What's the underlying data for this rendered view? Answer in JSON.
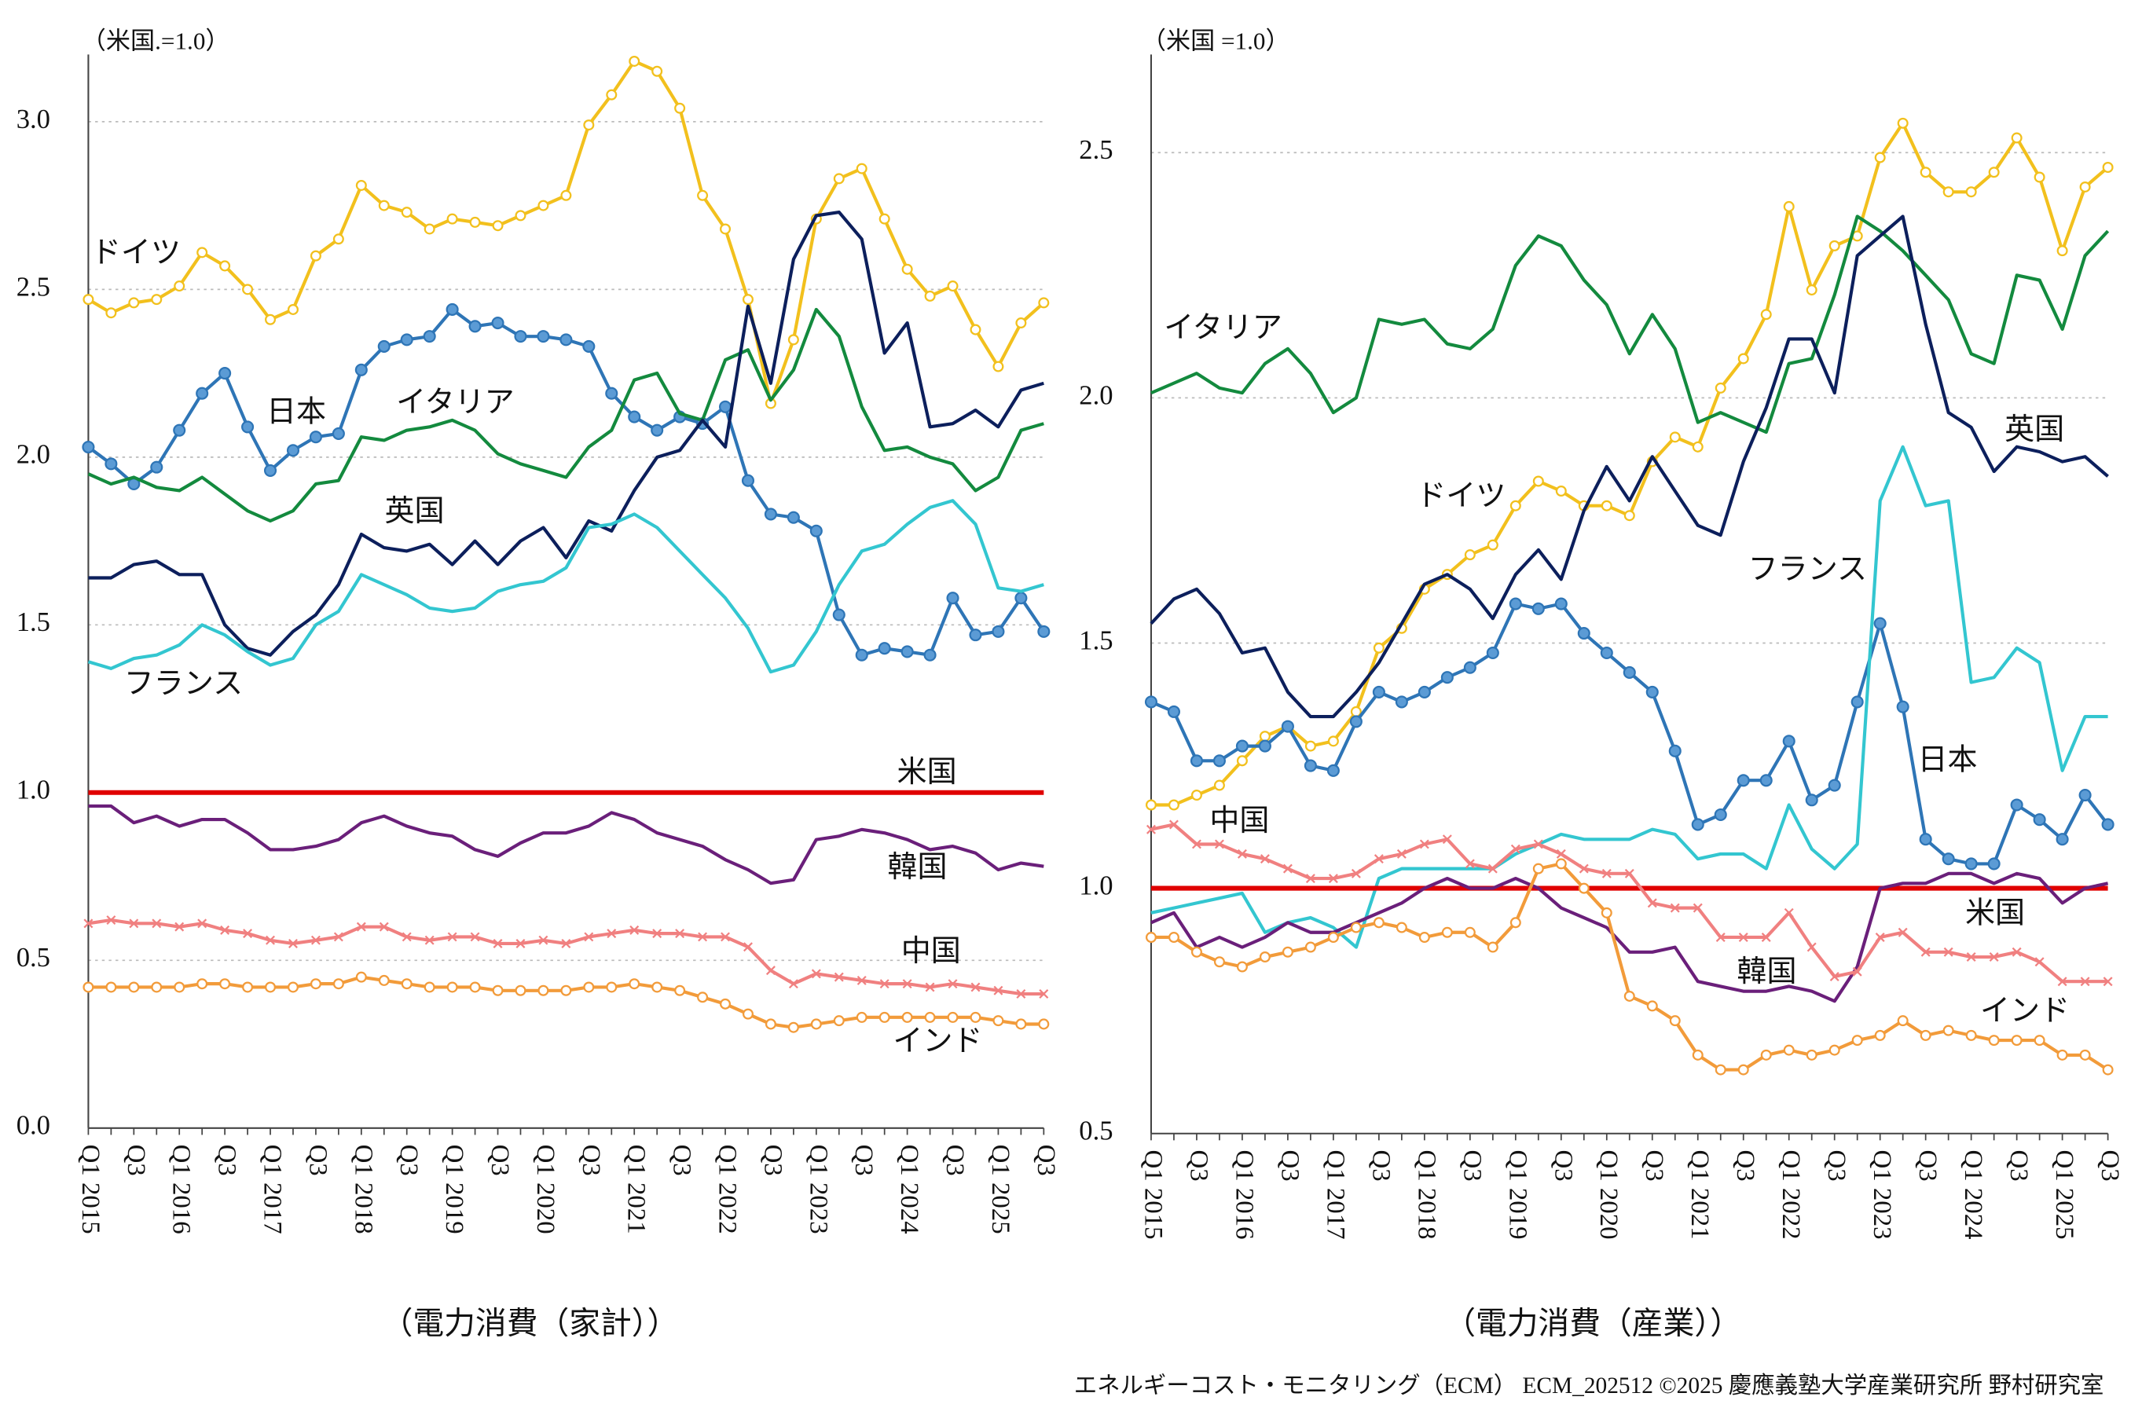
{
  "chart_data": [
    {
      "type": "line",
      "y_label": "（米国.=1.0）",
      "x_label": "（電力消費（家計））",
      "categories": [
        "Q1 2015",
        null,
        "Q3",
        null,
        "Q1 2016",
        null,
        "Q3",
        null,
        "Q1 2017",
        null,
        "Q3",
        null,
        "Q1 2018",
        null,
        "Q3",
        null,
        "Q1 2019",
        null,
        "Q3",
        null,
        "Q1 2020",
        null,
        "Q3",
        null,
        "Q1 2021",
        null,
        "Q3",
        null,
        "Q1 2022",
        null,
        "Q3",
        null,
        "Q1 2023",
        null,
        "Q3",
        null,
        "Q1 2024",
        null,
        "Q3",
        null,
        "Q1 2025",
        null,
        "Q3"
      ],
      "ylim": [
        0,
        3.2
      ],
      "yticks": [
        {
          "value": 0,
          "label": "0.0"
        },
        0.5,
        {
          "value": 1,
          "label": "1.0"
        },
        1.5,
        {
          "value": 2,
          "label": "2.0"
        },
        2.5,
        {
          "value": 3,
          "label": "3.0"
        }
      ],
      "grid": true,
      "series": [
        {
          "name": "ドイツ",
          "color": "#f2c01d",
          "marker": "open-circle",
          "values": [
            2.47,
            2.43,
            2.46,
            2.47,
            2.51,
            2.61,
            2.57,
            2.5,
            2.41,
            2.44,
            2.6,
            2.65,
            2.81,
            2.75,
            2.73,
            2.68,
            2.71,
            2.7,
            2.69,
            2.72,
            2.75,
            2.78,
            2.99,
            3.08,
            3.18,
            3.15,
            3.04,
            2.78,
            2.68,
            2.47,
            2.16,
            2.35,
            2.71,
            2.83,
            2.86,
            2.71,
            2.56,
            2.48,
            2.51,
            2.38,
            2.27,
            2.4,
            2.46
          ]
        },
        {
          "name": "日本",
          "color": "#2e75b6",
          "marker": "filled-circle",
          "values": [
            2.03,
            1.98,
            1.92,
            1.97,
            2.08,
            2.19,
            2.25,
            2.09,
            1.96,
            2.02,
            2.06,
            2.07,
            2.26,
            2.33,
            2.35,
            2.36,
            2.44,
            2.39,
            2.4,
            2.36,
            2.36,
            2.35,
            2.33,
            2.19,
            2.12,
            2.08,
            2.12,
            2.1,
            2.15,
            1.93,
            1.83,
            1.82,
            1.78,
            1.53,
            1.41,
            1.43,
            1.42,
            1.41,
            1.58,
            1.47,
            1.48,
            1.58,
            1.48
          ]
        },
        {
          "name": "イタリア",
          "color": "#138a3e",
          "marker": null,
          "values": [
            1.95,
            1.92,
            1.94,
            1.91,
            1.9,
            1.94,
            1.89,
            1.84,
            1.81,
            1.84,
            1.92,
            1.93,
            2.06,
            2.05,
            2.08,
            2.09,
            2.11,
            2.08,
            2.01,
            1.98,
            1.96,
            1.94,
            2.03,
            2.08,
            2.23,
            2.25,
            2.13,
            2.11,
            2.29,
            2.32,
            2.17,
            2.26,
            2.44,
            2.36,
            2.15,
            2.02,
            2.03,
            2.0,
            1.98,
            1.9,
            1.94,
            2.08,
            2.1
          ]
        },
        {
          "name": "英国",
          "color": "#0c1f5c",
          "marker": null,
          "values": [
            1.64,
            1.64,
            1.68,
            1.69,
            1.65,
            1.65,
            1.5,
            1.43,
            1.41,
            1.48,
            1.53,
            1.62,
            1.77,
            1.73,
            1.72,
            1.74,
            1.68,
            1.75,
            1.68,
            1.75,
            1.79,
            1.7,
            1.81,
            1.78,
            1.9,
            2.0,
            2.02,
            2.11,
            2.03,
            2.45,
            2.22,
            2.59,
            2.72,
            2.73,
            2.65,
            2.31,
            2.4,
            2.09,
            2.1,
            2.14,
            2.09,
            2.2,
            2.22
          ]
        },
        {
          "name": "フランス",
          "color": "#33c6d0",
          "marker": null,
          "values": [
            1.39,
            1.37,
            1.4,
            1.41,
            1.44,
            1.5,
            1.47,
            1.42,
            1.38,
            1.4,
            1.5,
            1.54,
            1.65,
            1.62,
            1.59,
            1.55,
            1.54,
            1.55,
            1.6,
            1.62,
            1.63,
            1.67,
            1.79,
            1.8,
            1.83,
            1.79,
            1.72,
            1.65,
            1.58,
            1.49,
            1.36,
            1.38,
            1.48,
            1.62,
            1.72,
            1.74,
            1.8,
            1.85,
            1.87,
            1.8,
            1.61,
            1.6,
            1.62
          ]
        },
        {
          "name": "米国",
          "color": "#e00000",
          "marker": null,
          "values": [
            1,
            1,
            1,
            1,
            1,
            1,
            1,
            1,
            1,
            1,
            1,
            1,
            1,
            1,
            1,
            1,
            1,
            1,
            1,
            1,
            1,
            1,
            1,
            1,
            1,
            1,
            1,
            1,
            1,
            1,
            1,
            1,
            1,
            1,
            1,
            1,
            1,
            1,
            1,
            1,
            1,
            1,
            1
          ]
        },
        {
          "name": "韓国",
          "color": "#6a1f7a",
          "marker": null,
          "values": [
            0.96,
            0.96,
            0.91,
            0.93,
            0.9,
            0.92,
            0.92,
            0.88,
            0.83,
            0.83,
            0.84,
            0.86,
            0.91,
            0.93,
            0.9,
            0.88,
            0.87,
            0.83,
            0.81,
            0.85,
            0.88,
            0.88,
            0.9,
            0.94,
            0.92,
            0.88,
            0.86,
            0.84,
            0.8,
            0.77,
            0.73,
            0.74,
            0.86,
            0.87,
            0.89,
            0.88,
            0.86,
            0.83,
            0.84,
            0.82,
            0.77,
            0.79,
            0.78
          ]
        },
        {
          "name": "中国",
          "color": "#f08080",
          "marker": "x",
          "values": [
            0.61,
            0.62,
            0.61,
            0.61,
            0.6,
            0.61,
            0.59,
            0.58,
            0.56,
            0.55,
            0.56,
            0.57,
            0.6,
            0.6,
            0.57,
            0.56,
            0.57,
            0.57,
            0.55,
            0.55,
            0.56,
            0.55,
            0.57,
            0.58,
            0.59,
            0.58,
            0.58,
            0.57,
            0.57,
            0.54,
            0.47,
            0.43,
            0.46,
            0.45,
            0.44,
            0.43,
            0.43,
            0.42,
            0.43,
            0.42,
            0.41,
            0.4,
            0.4
          ]
        },
        {
          "name": "インド",
          "color": "#f29b3a",
          "marker": "open-circle",
          "values": [
            0.42,
            0.42,
            0.42,
            0.42,
            0.42,
            0.43,
            0.43,
            0.42,
            0.42,
            0.42,
            0.43,
            0.43,
            0.45,
            0.44,
            0.43,
            0.42,
            0.42,
            0.42,
            0.41,
            0.41,
            0.41,
            0.41,
            0.42,
            0.42,
            0.43,
            0.42,
            0.41,
            0.39,
            0.37,
            0.34,
            0.31,
            0.3,
            0.31,
            0.32,
            0.33,
            0.33,
            0.33,
            0.33,
            0.33,
            0.33,
            0.32,
            0.31,
            0.31
          ]
        }
      ]
    },
    {
      "type": "line",
      "y_label": "（米国 =1.0）",
      "x_label": "（電力消費（産業））",
      "categories": [
        "Q1 2015",
        null,
        "Q3",
        null,
        "Q1 2016",
        null,
        "Q3",
        null,
        "Q1 2017",
        null,
        "Q3",
        null,
        "Q1 2018",
        null,
        "Q3",
        null,
        "Q1 2019",
        null,
        "Q3",
        null,
        "Q1 2020",
        null,
        "Q3",
        null,
        "Q1 2021",
        null,
        "Q3",
        null,
        "Q1 2022",
        null,
        "Q3",
        null,
        "Q1 2023",
        null,
        "Q3",
        null,
        "Q1 2024",
        null,
        "Q3",
        null,
        "Q1 2025",
        null,
        "Q3"
      ],
      "ylim": [
        0.5,
        2.7
      ],
      "yticks": [
        0.5,
        {
          "value": 1,
          "label": "1.0"
        },
        1.5,
        {
          "value": 2,
          "label": "2.0"
        },
        2.5
      ],
      "grid": true,
      "series": [
        {
          "name": "ドイツ",
          "color": "#f2c01d",
          "marker": "open-circle",
          "values": [
            1.17,
            1.17,
            1.19,
            1.21,
            1.26,
            1.31,
            1.33,
            1.29,
            1.3,
            1.36,
            1.49,
            1.53,
            1.61,
            1.64,
            1.68,
            1.7,
            1.78,
            1.83,
            1.81,
            1.78,
            1.78,
            1.76,
            1.87,
            1.92,
            1.9,
            2.02,
            2.08,
            2.17,
            2.39,
            2.22,
            2.31,
            2.33,
            2.49,
            2.56,
            2.46,
            2.42,
            2.42,
            2.46,
            2.53,
            2.45,
            2.3,
            2.43,
            2.47
          ]
        },
        {
          "name": "日本",
          "color": "#2e75b6",
          "marker": "filled-circle",
          "values": [
            1.38,
            1.36,
            1.26,
            1.26,
            1.29,
            1.29,
            1.33,
            1.25,
            1.24,
            1.34,
            1.4,
            1.38,
            1.4,
            1.43,
            1.45,
            1.48,
            1.58,
            1.57,
            1.58,
            1.52,
            1.48,
            1.44,
            1.4,
            1.28,
            1.13,
            1.15,
            1.22,
            1.22,
            1.3,
            1.18,
            1.21,
            1.38,
            1.54,
            1.37,
            1.1,
            1.06,
            1.05,
            1.05,
            1.17,
            1.14,
            1.1,
            1.19,
            1.13
          ]
        },
        {
          "name": "イタリア",
          "color": "#138a3e",
          "marker": null,
          "values": [
            2.01,
            2.03,
            2.05,
            2.02,
            2.01,
            2.07,
            2.1,
            2.05,
            1.97,
            2.0,
            2.16,
            2.15,
            2.16,
            2.11,
            2.1,
            2.14,
            2.27,
            2.33,
            2.31,
            2.24,
            2.19,
            2.09,
            2.17,
            2.1,
            1.95,
            1.97,
            1.95,
            1.93,
            2.07,
            2.08,
            2.21,
            2.37,
            2.34,
            2.3,
            2.25,
            2.2,
            2.09,
            2.07,
            2.25,
            2.24,
            2.14,
            2.29,
            2.34
          ]
        },
        {
          "name": "英国",
          "color": "#0c1f5c",
          "marker": null,
          "values": [
            1.54,
            1.59,
            1.61,
            1.56,
            1.48,
            1.49,
            1.4,
            1.35,
            1.35,
            1.4,
            1.46,
            1.54,
            1.62,
            1.64,
            1.61,
            1.55,
            1.64,
            1.69,
            1.63,
            1.77,
            1.86,
            1.79,
            1.88,
            1.81,
            1.74,
            1.72,
            1.87,
            1.98,
            2.12,
            2.12,
            2.01,
            2.29,
            2.33,
            2.37,
            2.15,
            1.97,
            1.94,
            1.85,
            1.9,
            1.89,
            1.87,
            1.88,
            1.84
          ]
        },
        {
          "name": "フランス",
          "color": "#33c6d0",
          "marker": null,
          "values": [
            0.95,
            0.96,
            0.97,
            0.98,
            0.99,
            0.91,
            0.93,
            0.94,
            0.92,
            0.88,
            1.02,
            1.04,
            1.04,
            1.04,
            1.04,
            1.04,
            1.07,
            1.09,
            1.11,
            1.1,
            1.1,
            1.1,
            1.12,
            1.11,
            1.06,
            1.07,
            1.07,
            1.04,
            1.17,
            1.08,
            1.04,
            1.09,
            1.79,
            1.9,
            1.78,
            1.79,
            1.42,
            1.43,
            1.49,
            1.46,
            1.24,
            1.35,
            1.35
          ]
        },
        {
          "name": "米国",
          "color": "#e00000",
          "marker": null,
          "values": [
            1,
            1,
            1,
            1,
            1,
            1,
            1,
            1,
            1,
            1,
            1,
            1,
            1,
            1,
            1,
            1,
            1,
            1,
            1,
            1,
            1,
            1,
            1,
            1,
            1,
            1,
            1,
            1,
            1,
            1,
            1,
            1,
            1,
            1,
            1,
            1,
            1,
            1,
            1,
            1,
            1,
            1,
            1
          ]
        },
        {
          "name": "韓国",
          "color": "#6a1f7a",
          "marker": null,
          "values": [
            0.93,
            0.95,
            0.88,
            0.9,
            0.88,
            0.9,
            0.93,
            0.91,
            0.91,
            0.93,
            0.95,
            0.97,
            1.0,
            1.02,
            1.0,
            1.0,
            1.02,
            1.0,
            0.96,
            0.94,
            0.92,
            0.87,
            0.87,
            0.88,
            0.81,
            0.8,
            0.79,
            0.79,
            0.8,
            0.79,
            0.77,
            0.84,
            1.0,
            1.01,
            1.01,
            1.03,
            1.03,
            1.01,
            1.03,
            1.02,
            0.97,
            1.0,
            1.01
          ]
        },
        {
          "name": "中国",
          "color": "#f08080",
          "marker": "x",
          "values": [
            1.12,
            1.13,
            1.09,
            1.09,
            1.07,
            1.06,
            1.04,
            1.02,
            1.02,
            1.03,
            1.06,
            1.07,
            1.09,
            1.1,
            1.05,
            1.04,
            1.08,
            1.09,
            1.07,
            1.04,
            1.03,
            1.03,
            0.97,
            0.96,
            0.96,
            0.9,
            0.9,
            0.9,
            0.95,
            0.88,
            0.82,
            0.83,
            0.9,
            0.91,
            0.87,
            0.87,
            0.86,
            0.86,
            0.87,
            0.85,
            0.81,
            0.81,
            0.81
          ]
        },
        {
          "name": "インド",
          "color": "#f29b3a",
          "marker": "open-circle",
          "values": [
            0.9,
            0.9,
            0.87,
            0.85,
            0.84,
            0.86,
            0.87,
            0.88,
            0.9,
            0.92,
            0.93,
            0.92,
            0.9,
            0.91,
            0.91,
            0.88,
            0.93,
            1.04,
            1.05,
            1.0,
            0.95,
            0.78,
            0.76,
            0.73,
            0.66,
            0.63,
            0.63,
            0.66,
            0.67,
            0.66,
            0.67,
            0.69,
            0.7,
            0.73,
            0.7,
            0.71,
            0.7,
            0.69,
            0.69,
            0.69,
            0.66,
            0.66,
            0.63
          ]
        }
      ]
    }
  ],
  "footer": "エネルギーコスト・モニタリング（ECM） ECM_202512 ©2025 慶應義塾大学産業研究所 野村研究室"
}
